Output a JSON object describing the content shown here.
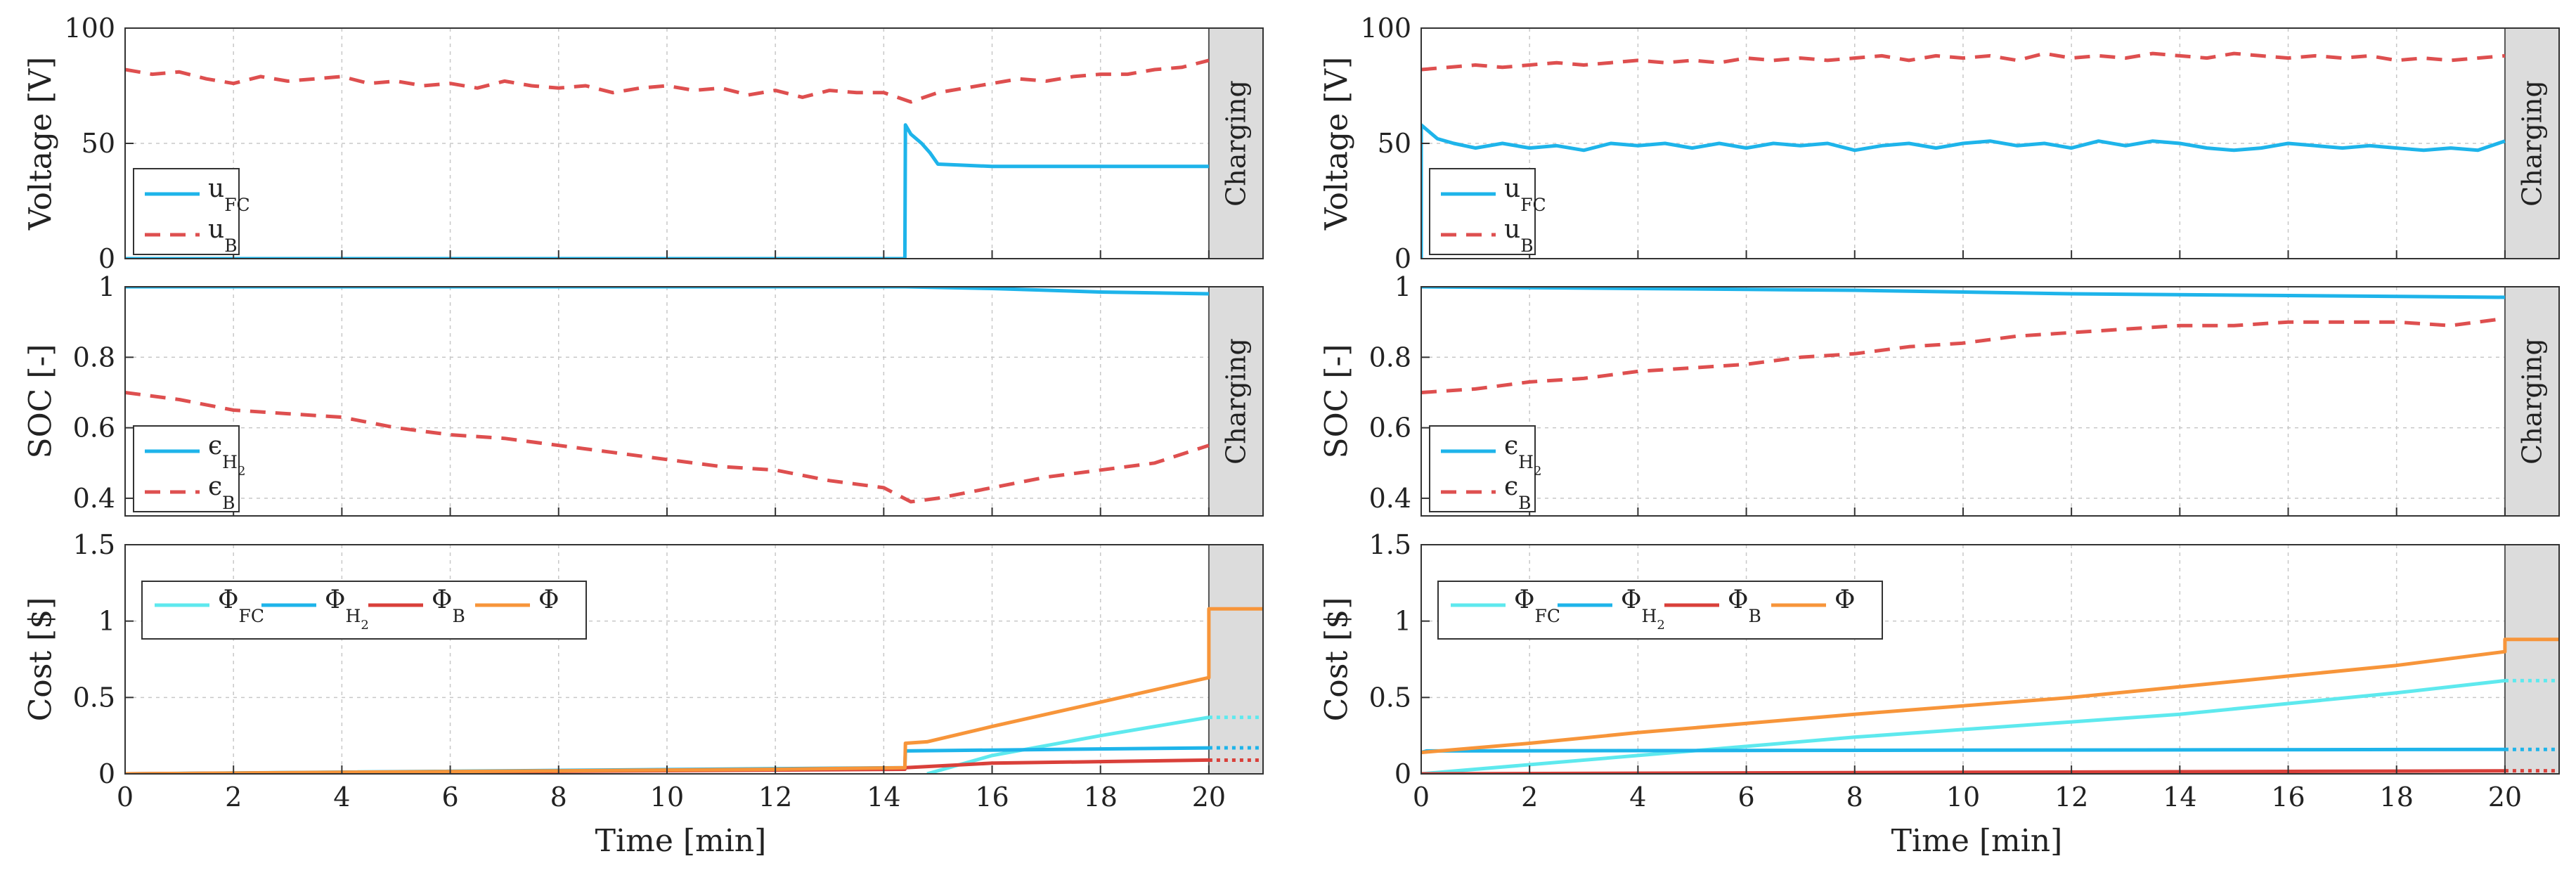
{
  "chart_data": [
    {
      "id": "left",
      "panels": [
        {
          "type": "line",
          "ylabel": "Voltage [V]",
          "ylim": [
            0,
            100
          ],
          "yticks": [
            0,
            50,
            100
          ],
          "xlim": [
            0,
            21
          ],
          "charging_band": [
            20,
            21
          ],
          "charging_label": "Charging",
          "legend": [
            {
              "base": "u",
              "sub": "FC",
              "color": "#1eb4ea",
              "dash": false
            },
            {
              "base": "u",
              "sub": "B",
              "color": "#de4f4f",
              "dash": true
            }
          ],
          "series": [
            {
              "name": "u_FC",
              "color": "#1eb4ea",
              "dash": false,
              "x": [
                0,
                14.39,
                14.4,
                14.5,
                14.7,
                14.85,
                15.0,
                16,
                18,
                20
              ],
              "y": [
                0,
                0,
                58,
                54,
                50,
                46,
                41,
                40,
                40,
                40
              ]
            },
            {
              "name": "u_B",
              "color": "#de4f4f",
              "dash": true,
              "x": [
                0,
                0.5,
                1,
                1.5,
                2,
                2.5,
                3,
                3.5,
                4,
                4.5,
                5,
                5.5,
                6,
                6.5,
                7,
                7.5,
                8,
                8.5,
                9,
                9.5,
                10,
                10.5,
                11,
                11.5,
                12,
                12.5,
                13,
                13.5,
                14,
                14.5,
                15,
                15.5,
                16,
                16.5,
                17,
                17.5,
                18,
                18.5,
                19,
                19.5,
                20
              ],
              "y": [
                82,
                80,
                81,
                78,
                76,
                79,
                77,
                78,
                79,
                76,
                77,
                75,
                76,
                74,
                77,
                75,
                74,
                75,
                72,
                74,
                75,
                73,
                74,
                71,
                73,
                70,
                73,
                72,
                72,
                68,
                72,
                74,
                76,
                78,
                77,
                79,
                80,
                80,
                82,
                83,
                86
              ]
            }
          ]
        },
        {
          "type": "line",
          "ylabel": "SOC [-]",
          "ylim": [
            0.35,
            1
          ],
          "yticks": [
            0.4,
            0.6,
            0.8,
            1
          ],
          "ytick_labels": [
            "0.4",
            "0.6",
            "0.8",
            "1"
          ],
          "xlim": [
            0,
            21
          ],
          "charging_band": [
            20,
            21
          ],
          "charging_label": "Charging",
          "legend": [
            {
              "base": "ϵ",
              "sub": "H",
              "sub2": "2",
              "color": "#1eb4ea",
              "dash": false
            },
            {
              "base": "ϵ",
              "sub": "B",
              "color": "#de4f4f",
              "dash": true
            }
          ],
          "series": [
            {
              "name": "eps_H2",
              "color": "#1eb4ea",
              "dash": false,
              "x": [
                0,
                14.4,
                16,
                18,
                20
              ],
              "y": [
                1.0,
                1.0,
                0.995,
                0.985,
                0.98
              ]
            },
            {
              "name": "eps_B",
              "color": "#de4f4f",
              "dash": true,
              "x": [
                0,
                1,
                2,
                3,
                4,
                5,
                6,
                7,
                8,
                9,
                10,
                11,
                12,
                13,
                14,
                14.5,
                15,
                16,
                17,
                18,
                19,
                20
              ],
              "y": [
                0.7,
                0.68,
                0.65,
                0.64,
                0.63,
                0.6,
                0.58,
                0.57,
                0.55,
                0.53,
                0.51,
                0.49,
                0.48,
                0.45,
                0.43,
                0.39,
                0.4,
                0.43,
                0.46,
                0.48,
                0.5,
                0.55
              ]
            }
          ]
        },
        {
          "type": "line",
          "ylabel": "Cost [$]",
          "ylim": [
            0,
            1.5
          ],
          "yticks": [
            0,
            0.5,
            1,
            1.5
          ],
          "ytick_labels": [
            "0",
            "0.5",
            "1",
            "1.5"
          ],
          "xlim": [
            0,
            21
          ],
          "xticks": [
            0,
            2,
            4,
            6,
            8,
            10,
            12,
            14,
            16,
            18,
            20
          ],
          "xlabel": "Time [min]",
          "charging_band": [
            20,
            21
          ],
          "legend": [
            {
              "base": "Φ",
              "sub": "FC",
              "color": "#5ee9ee",
              "dash": false
            },
            {
              "base": "Φ",
              "sub": "H",
              "sub2": "2",
              "color": "#1eb4ea",
              "dash": false
            },
            {
              "base": "Φ",
              "sub": "B",
              "color": "#d9403a",
              "dash": false
            },
            {
              "base": "Φ",
              "sub": "",
              "color": "#f7953a",
              "dash": false
            }
          ],
          "series": [
            {
              "name": "Phi_FC",
              "color": "#5ee9ee",
              "dash": false,
              "x": [
                14.8,
                16,
                18,
                20
              ],
              "y": [
                0,
                0.12,
                0.25,
                0.37
              ],
              "tail": 0.37
            },
            {
              "name": "Phi_H2",
              "color": "#1eb4ea",
              "dash": false,
              "x": [
                0,
                14.39,
                14.4,
                20
              ],
              "y": [
                0,
                0.04,
                0.15,
                0.17
              ],
              "tail": 0.17
            },
            {
              "name": "Phi_B",
              "color": "#d9403a",
              "dash": false,
              "x": [
                0,
                14.39,
                14.4,
                16,
                18,
                20
              ],
              "y": [
                0,
                0.03,
                0.04,
                0.07,
                0.08,
                0.09
              ],
              "tail": 0.09
            },
            {
              "name": "Phi",
              "color": "#f7953a",
              "dash": false,
              "x": [
                0,
                4,
                8,
                12,
                14.39,
                14.4,
                14.8,
                16,
                18,
                20,
                20,
                21
              ],
              "y": [
                0,
                0.01,
                0.02,
                0.03,
                0.04,
                0.2,
                0.21,
                0.31,
                0.47,
                0.63,
                1.08,
                1.08
              ]
            }
          ]
        }
      ]
    },
    {
      "id": "right",
      "panels": [
        {
          "type": "line",
          "ylabel": "Voltage [V]",
          "ylim": [
            0,
            100
          ],
          "yticks": [
            0,
            50,
            100
          ],
          "xlim": [
            0,
            21
          ],
          "charging_band": [
            20,
            21
          ],
          "charging_label": "Charging",
          "legend": [
            {
              "base": "u",
              "sub": "FC",
              "color": "#1eb4ea",
              "dash": false
            },
            {
              "base": "u",
              "sub": "B",
              "color": "#de4f4f",
              "dash": true
            }
          ],
          "series": [
            {
              "name": "u_FC",
              "color": "#1eb4ea",
              "dash": false,
              "x": [
                0,
                0,
                0.3,
                0.6,
                1,
                1.5,
                2,
                2.5,
                3,
                3.5,
                4,
                4.5,
                5,
                5.5,
                6,
                6.5,
                7,
                7.5,
                8,
                8.5,
                9,
                9.5,
                10,
                10.5,
                11,
                11.5,
                12,
                12.5,
                13,
                13.5,
                14,
                14.5,
                15,
                15.5,
                16,
                16.5,
                17,
                17.5,
                18,
                18.5,
                19,
                19.5,
                20
              ],
              "y": [
                0,
                58,
                52,
                50,
                48,
                50,
                48,
                49,
                47,
                50,
                49,
                50,
                48,
                50,
                48,
                50,
                49,
                50,
                47,
                49,
                50,
                48,
                50,
                51,
                49,
                50,
                48,
                51,
                49,
                51,
                50,
                48,
                47,
                48,
                50,
                49,
                48,
                49,
                48,
                47,
                48,
                47,
                51
              ]
            },
            {
              "name": "u_B",
              "color": "#de4f4f",
              "dash": true,
              "x": [
                0,
                0.5,
                1,
                1.5,
                2,
                2.5,
                3,
                3.5,
                4,
                4.5,
                5,
                5.5,
                6,
                6.5,
                7,
                7.5,
                8,
                8.5,
                9,
                9.5,
                10,
                10.5,
                11,
                11.5,
                12,
                12.5,
                13,
                13.5,
                14,
                14.5,
                15,
                15.5,
                16,
                16.5,
                17,
                17.5,
                18,
                18.5,
                19,
                19.5,
                20
              ],
              "y": [
                82,
                83,
                84,
                83,
                84,
                85,
                84,
                85,
                86,
                85,
                86,
                85,
                87,
                86,
                87,
                86,
                87,
                88,
                86,
                88,
                87,
                88,
                86,
                89,
                87,
                88,
                87,
                89,
                88,
                87,
                89,
                88,
                87,
                88,
                87,
                88,
                86,
                87,
                86,
                87,
                88
              ]
            }
          ]
        },
        {
          "type": "line",
          "ylabel": "SOC [-]",
          "ylim": [
            0.35,
            1
          ],
          "yticks": [
            0.4,
            0.6,
            0.8,
            1
          ],
          "ytick_labels": [
            "0.4",
            "0.6",
            "0.8",
            "1"
          ],
          "xlim": [
            0,
            21
          ],
          "charging_band": [
            20,
            21
          ],
          "charging_label": "Charging",
          "legend": [
            {
              "base": "ϵ",
              "sub": "H",
              "sub2": "2",
              "color": "#1eb4ea",
              "dash": false
            },
            {
              "base": "ϵ",
              "sub": "B",
              "color": "#de4f4f",
              "dash": true
            }
          ],
          "series": [
            {
              "name": "eps_H2",
              "color": "#1eb4ea",
              "dash": false,
              "x": [
                0,
                4,
                8,
                12,
                16,
                20
              ],
              "y": [
                1.0,
                0.995,
                0.99,
                0.98,
                0.975,
                0.97
              ]
            },
            {
              "name": "eps_B",
              "color": "#de4f4f",
              "dash": true,
              "x": [
                0,
                1,
                2,
                3,
                4,
                5,
                6,
                7,
                8,
                9,
                10,
                11,
                12,
                13,
                14,
                15,
                16,
                17,
                18,
                19,
                20
              ],
              "y": [
                0.7,
                0.71,
                0.73,
                0.74,
                0.76,
                0.77,
                0.78,
                0.8,
                0.81,
                0.83,
                0.84,
                0.86,
                0.87,
                0.88,
                0.89,
                0.89,
                0.9,
                0.9,
                0.9,
                0.89,
                0.91
              ]
            }
          ]
        },
        {
          "type": "line",
          "ylabel": "Cost [$]",
          "ylim": [
            0,
            1.5
          ],
          "yticks": [
            0,
            0.5,
            1,
            1.5
          ],
          "ytick_labels": [
            "0",
            "0.5",
            "1",
            "1.5"
          ],
          "xlim": [
            0,
            21
          ],
          "xticks": [
            0,
            2,
            4,
            6,
            8,
            10,
            12,
            14,
            16,
            18,
            20
          ],
          "xlabel": "Time [min]",
          "charging_band": [
            20,
            21
          ],
          "legend": [
            {
              "base": "Φ",
              "sub": "FC",
              "color": "#5ee9ee",
              "dash": false
            },
            {
              "base": "Φ",
              "sub": "H",
              "sub2": "2",
              "color": "#1eb4ea",
              "dash": false
            },
            {
              "base": "Φ",
              "sub": "B",
              "color": "#d9403a",
              "dash": false
            },
            {
              "base": "Φ",
              "sub": "",
              "color": "#f7953a",
              "dash": false
            }
          ],
          "series": [
            {
              "name": "Phi_FC",
              "color": "#5ee9ee",
              "dash": false,
              "x": [
                0,
                4,
                8,
                12,
                14,
                16,
                18,
                20
              ],
              "y": [
                0,
                0.12,
                0.24,
                0.34,
                0.39,
                0.46,
                0.53,
                0.61
              ],
              "tail": 0.61
            },
            {
              "name": "Phi_H2",
              "color": "#1eb4ea",
              "dash": false,
              "x": [
                0,
                0.1,
                20
              ],
              "y": [
                0.14,
                0.15,
                0.16
              ],
              "tail": 0.16
            },
            {
              "name": "Phi_B",
              "color": "#d9403a",
              "dash": false,
              "x": [
                0,
                10,
                20
              ],
              "y": [
                0,
                0.01,
                0.02
              ],
              "tail": 0.02
            },
            {
              "name": "Phi",
              "color": "#f7953a",
              "dash": false,
              "x": [
                0,
                2,
                4,
                8,
                12,
                14,
                16,
                18,
                20,
                20,
                21
              ],
              "y": [
                0.14,
                0.2,
                0.27,
                0.39,
                0.5,
                0.57,
                0.64,
                0.71,
                0.8,
                0.88,
                0.88
              ]
            }
          ]
        }
      ]
    }
  ]
}
